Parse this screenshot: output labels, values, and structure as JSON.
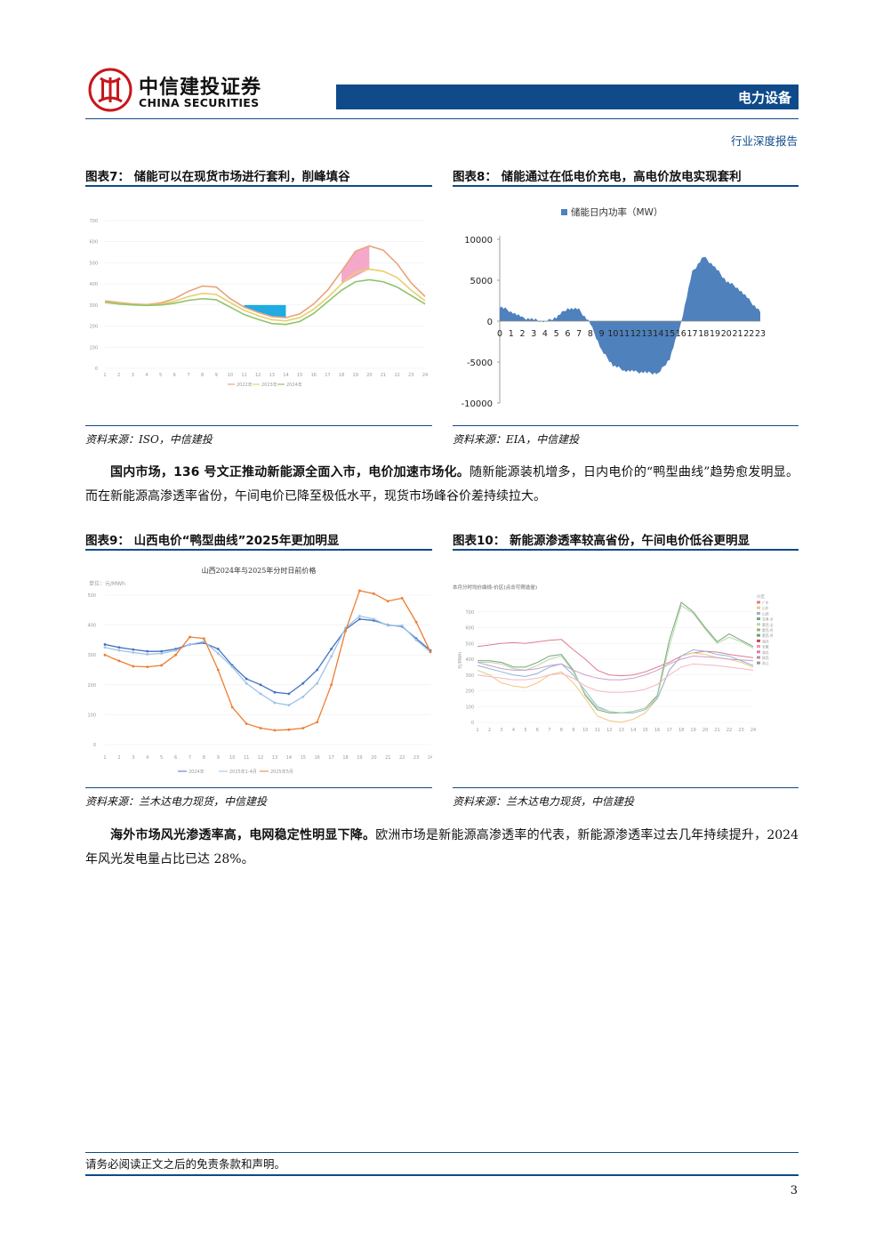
{
  "header": {
    "brand_cn": "中信建投证券",
    "brand_en": "CHINA SECURITIES",
    "sector": "电力设备",
    "report_type": "行业深度报告",
    "accent_color": "#0f4a8a",
    "logo_color": "#c8161d"
  },
  "figures": {
    "fig7": {
      "title": "图表7：  储能可以在现货市场进行套利，削峰填谷",
      "source": "资料来源：ISO，中信建投",
      "chart_data": {
        "type": "line",
        "x": [
          1,
          2,
          3,
          4,
          5,
          6,
          7,
          8,
          9,
          10,
          11,
          12,
          13,
          14,
          15,
          16,
          17,
          18,
          19,
          20,
          21,
          22,
          23,
          24
        ],
        "ylim": [
          0,
          700
        ],
        "yticks": [
          "0",
          "100",
          "200",
          "300",
          "400",
          "500",
          "600",
          "700"
        ],
        "series": [
          {
            "name": "2022年",
            "color": "#e8a37c",
            "values": [
              320,
              312,
              305,
              302,
              310,
              330,
              365,
              390,
              385,
              330,
              290,
              265,
              245,
              240,
              258,
              305,
              370,
              460,
              555,
              580,
              560,
              495,
              405,
              340
            ]
          },
          {
            "name": "2023年",
            "color": "#e8cf6c",
            "values": [
              315,
              308,
              302,
              300,
              304,
              318,
              340,
              355,
              350,
              312,
              275,
              250,
              230,
              225,
              240,
              280,
              335,
              400,
              455,
              470,
              460,
              430,
              370,
              320
            ]
          },
          {
            "name": "2024年",
            "color": "#8fc36a",
            "values": [
              312,
              305,
              300,
              298,
              300,
              308,
              322,
              330,
              325,
              290,
              255,
              232,
              212,
              208,
              222,
              260,
              315,
              370,
              410,
              420,
              410,
              385,
              345,
              305
            ]
          }
        ],
        "legend": [
          "2022年",
          "2023年",
          "2024年"
        ],
        "fills": [
          {
            "color": "#f5a3c7",
            "x": [
              18,
              20
            ]
          },
          {
            "color": "#14a8e2",
            "x": [
              11,
              14
            ]
          }
        ]
      }
    },
    "fig8": {
      "title": "图表8：  储能通过在低电价充电，高电价放电实现套利",
      "source": "资料来源：EIA，中信建投",
      "chart_data": {
        "type": "area",
        "legend": [
          "储能日内功率（MW）"
        ],
        "color": "#4f81bd",
        "ylim": [
          -10000,
          10000
        ],
        "yticks": [
          "10000",
          "5000",
          "0",
          "-5000",
          "-10000"
        ],
        "x": [
          0,
          1,
          2,
          3,
          4,
          5,
          6,
          7,
          8,
          9,
          10,
          11,
          12,
          13,
          14,
          15,
          16,
          17,
          18,
          19,
          20,
          21,
          22,
          23
        ],
        "xtick_labels": [
          "0",
          "1",
          "2",
          "3",
          "4",
          "5",
          "6",
          "7",
          "8",
          "9",
          "10",
          "11",
          "12",
          "13",
          "14",
          "15",
          "16",
          "17",
          "18",
          "19",
          "20",
          "21",
          "22",
          "23"
        ],
        "values": [
          1800,
          1200,
          400,
          200,
          -100,
          500,
          1600,
          1400,
          -300,
          -3600,
          -5400,
          -6000,
          -6200,
          -6300,
          -6400,
          -4600,
          -200,
          6000,
          7900,
          6600,
          4900,
          4100,
          2600,
          1100
        ]
      }
    },
    "fig9": {
      "title": "图表9：  山西电价“鸭型曲线”2025年更加明显",
      "source": "资料来源：兰木达电力现货，中信建投",
      "chart_data": {
        "type": "line",
        "title": "山西2024年与2025年分时日前价格",
        "unit_label": "单位：元/MWh",
        "x": [
          1,
          2,
          3,
          4,
          5,
          6,
          7,
          8,
          9,
          10,
          11,
          12,
          13,
          14,
          15,
          16,
          17,
          18,
          19,
          20,
          21,
          22,
          23,
          24
        ],
        "ylim": [
          0,
          500
        ],
        "yticks": [
          "0",
          "100",
          "200",
          "300",
          "400",
          "500"
        ],
        "series": [
          {
            "name": "2024年",
            "color": "#4472c4",
            "values": [
              335,
              325,
              318,
              312,
              312,
              320,
              335,
              340,
              320,
              265,
              220,
              200,
              175,
              170,
              205,
              250,
              320,
              385,
              420,
              415,
              400,
              395,
              355,
              315
            ]
          },
          {
            "name": "2025年1-4月",
            "color": "#9dc3e6",
            "values": [
              325,
              315,
              308,
              302,
              305,
              315,
              335,
              345,
              305,
              260,
              205,
              170,
              140,
              132,
              160,
              205,
              295,
              390,
              430,
              420,
              398,
              398,
              350,
              310
            ]
          },
          {
            "name": "2025年5月",
            "color": "#ed7d31",
            "values": [
              300,
              280,
              262,
              260,
              265,
              300,
              360,
              355,
              250,
              125,
              70,
              55,
              48,
              50,
              55,
              75,
              200,
              380,
              515,
              505,
              480,
              490,
              410,
              310
            ]
          }
        ]
      }
    },
    "fig10": {
      "title": "图表10：  新能源渗透率较高省份，午间电价低谷更明显",
      "source": "资料来源：兰木达电力现货，中信建投",
      "chart_data": {
        "type": "line",
        "title": "本月分时均价曲线-价区(点击可筛选省)",
        "ylabel": "元/MWh",
        "x": [
          1,
          2,
          3,
          4,
          5,
          6,
          7,
          8,
          9,
          10,
          11,
          12,
          13,
          14,
          15,
          16,
          17,
          18,
          19,
          20,
          21,
          22,
          23,
          24
        ],
        "ylim": [
          0,
          800
        ],
        "yticks": [
          "0",
          "100",
          "200",
          "300",
          "400",
          "500",
          "600",
          "700"
        ],
        "legend_title": "价区",
        "legend": [
          "广东",
          "山东",
          "山西",
          "甘肃-全网",
          "蒙西-全网",
          "蒙西-呼包东",
          "蒙西-呼包西",
          "湖北",
          "安徽",
          "湖北",
          "陕西",
          "浙江"
        ],
        "series": [
          {
            "name": "广东",
            "color": "#e07b91",
            "values": [
              480,
              490,
              500,
              505,
              500,
              510,
              520,
              525,
              460,
              400,
              330,
              300,
              295,
              300,
              320,
              350,
              380,
              420,
              440,
              450,
              445,
              430,
              420,
              410
            ]
          },
          {
            "name": "山东",
            "color": "#f2c57c",
            "values": [
              330,
              300,
              250,
              230,
              220,
              250,
              300,
              320,
              250,
              150,
              40,
              10,
              -10,
              20,
              60,
              150,
              330,
              420,
              440,
              430,
              410,
              400,
              380,
              350
            ]
          },
          {
            "name": "山西",
            "color": "#90b5d8",
            "values": [
              360,
              340,
              320,
              300,
              290,
              310,
              350,
              370,
              300,
              200,
              100,
              70,
              60,
              60,
              80,
              150,
              330,
              420,
              460,
              450,
              430,
              420,
              390,
              360
            ]
          },
          {
            "name": "甘肃-全网",
            "color": "#77a37a",
            "values": [
              390,
              390,
              380,
              350,
              350,
              380,
              420,
              430,
              330,
              170,
              80,
              60,
              60,
              70,
              90,
              170,
              520,
              760,
              700,
              600,
              510,
              560,
              520,
              480
            ]
          },
          {
            "name": "蒙西-全网",
            "color": "#b7d7a8",
            "values": [
              380,
              380,
              370,
              340,
              330,
              360,
              400,
              420,
              320,
              180,
              90,
              70,
              60,
              70,
              90,
              160,
              480,
              740,
              690,
              590,
              500,
              540,
              510,
              470
            ]
          },
          {
            "name": "浙江",
            "color": "#c9a0c8",
            "values": [
              380,
              360,
              340,
              330,
              330,
              340,
              360,
              370,
              330,
              300,
              280,
              270,
              270,
              280,
              300,
              330,
              370,
              400,
              420,
              415,
              410,
              400,
              395,
              390
            ]
          },
          {
            "name": "陕西",
            "color": "#f4b6c2",
            "values": [
              300,
              290,
              280,
              270,
              270,
              280,
              300,
              310,
              280,
              230,
              200,
              190,
              190,
              195,
              210,
              240,
              300,
              350,
              370,
              365,
              360,
              350,
              340,
              330
            ]
          }
        ]
      }
    }
  },
  "paragraphs": [
    {
      "bold": "国内市场，136 号文正推动新能源全面入市，电价加速市场化。",
      "text": "随新能源装机增多，日内电价的“鸭型曲线”趋势愈发明显。而在新能源高渗透率省份，午间电价已降至极低水平，现货市场峰谷价差持续拉大。"
    },
    {
      "bold": "海外市场风光渗透率高，电网稳定性明显下降。",
      "text": "欧洲市场是新能源高渗透率的代表，新能源渗透率过去几年持续提升，2024 年风光发电量占比已达 28%。"
    }
  ],
  "footer": {
    "disclaimer": "请务必阅读正文之后的免责条款和声明。",
    "page_number": "3"
  }
}
